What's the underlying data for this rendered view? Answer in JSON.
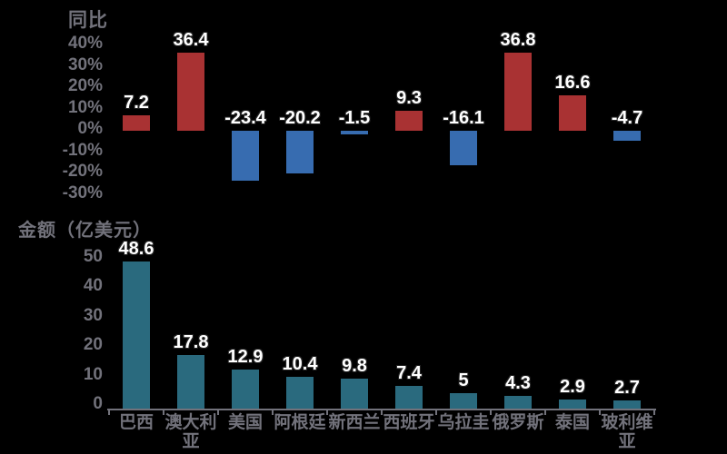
{
  "background": "#000000",
  "text_color": "#72727B",
  "chart_data": [
    {
      "type": "bar",
      "title": "同比",
      "categories": [
        "巴西",
        "澳大利亚",
        "美国",
        "阿根廷",
        "新西兰",
        "西班牙",
        "乌拉圭",
        "俄罗斯",
        "泰国",
        "玻利维亚"
      ],
      "values": [
        7.2,
        36.4,
        -23.4,
        -20.2,
        -1.5,
        9.3,
        -16.1,
        36.8,
        16.6,
        -4.7
      ],
      "positive_color": "#A93233",
      "negative_color": "#376CB0",
      "yticks": [
        40,
        30,
        20,
        10,
        0,
        -10,
        -20,
        -30
      ],
      "yticklabels": [
        "40%",
        "30%",
        "20%",
        "10%",
        "0%",
        "-10%",
        "-20%",
        "-30%"
      ],
      "ylim": [
        -30,
        40
      ],
      "grid": false,
      "legend": "none",
      "data_labels": "outside-end, white with dark outline"
    },
    {
      "type": "bar",
      "title": "金额（亿美元）",
      "categories": [
        "巴西",
        "澳大利亚",
        "美国",
        "阿根廷",
        "新西兰",
        "西班牙",
        "乌拉圭",
        "俄罗斯",
        "泰国",
        "玻利维亚"
      ],
      "values": [
        48.6,
        17.8,
        12.9,
        10.4,
        9.8,
        7.4,
        5,
        4.3,
        2.9,
        2.7
      ],
      "bar_color": "#2A6A7E",
      "yticks": [
        50,
        40,
        30,
        20,
        10,
        0
      ],
      "yticklabels": [
        "50",
        "40",
        "30",
        "20",
        "10",
        "0"
      ],
      "ylim": [
        0,
        50
      ],
      "grid": false,
      "legend": "none",
      "x_axis_line": true,
      "data_labels": "outside-end, white with dark outline"
    }
  ]
}
